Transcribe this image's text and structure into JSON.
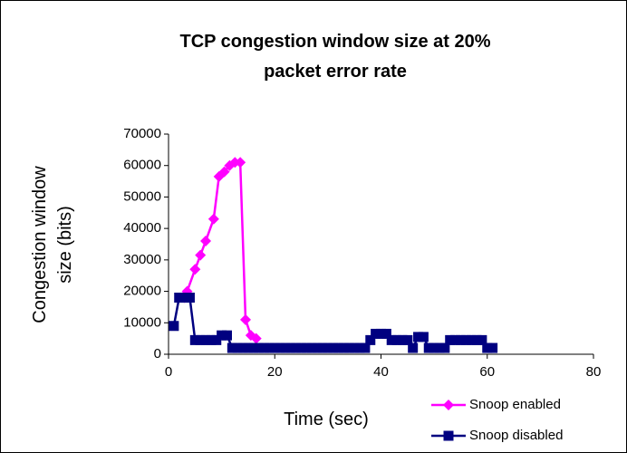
{
  "chart_data": {
    "type": "line",
    "title": "TCP congestion window size at 20% packet error rate",
    "x_label": "Time (sec)",
    "y_label": "Congestion window size (bits)",
    "xlim": [
      0,
      80
    ],
    "xticks": [
      0,
      20,
      40,
      60,
      80
    ],
    "ylim": [
      0,
      70000
    ],
    "yticks": [
      0,
      10000,
      20000,
      30000,
      40000,
      50000,
      60000,
      70000
    ],
    "grid": false,
    "legend": "bottom-right",
    "series": [
      {
        "name": "Snoop enabled",
        "color": "#ff00ff",
        "marker": "diamond",
        "x": [
          3,
          3.5,
          5,
          6,
          7,
          8.5,
          9.5,
          10.5,
          11.5,
          12.5,
          13.5,
          14.5,
          15.5,
          16.5
        ],
        "values": [
          18000,
          20000,
          27000,
          31500,
          36000,
          43000,
          56500,
          58000,
          60000,
          61000,
          61000,
          11000,
          6000,
          5000
        ]
      },
      {
        "name": "Snoop disabled",
        "color": "#000080",
        "marker": "square",
        "x": [
          1,
          2,
          3,
          4,
          5,
          6,
          7,
          8,
          9,
          10,
          11,
          12,
          13,
          14,
          15,
          16,
          17,
          18,
          19,
          20,
          21,
          22,
          23,
          24,
          25,
          26,
          27,
          28,
          29,
          30,
          31,
          32,
          33,
          34,
          35,
          36,
          37,
          38,
          39,
          40,
          41,
          42,
          43,
          44,
          45,
          46,
          47,
          48,
          49,
          50,
          51,
          52,
          53,
          54,
          55,
          56,
          57,
          58,
          59,
          60,
          61
        ],
        "values": [
          9000,
          18000,
          18000,
          18000,
          4500,
          4500,
          4500,
          4500,
          4500,
          6000,
          6000,
          2000,
          2000,
          2000,
          2000,
          2000,
          2000,
          2000,
          2000,
          2000,
          2000,
          2000,
          2000,
          2000,
          2000,
          2000,
          2000,
          2000,
          2000,
          2000,
          2000,
          2000,
          2000,
          2000,
          2000,
          2000,
          2000,
          4500,
          6500,
          6500,
          6500,
          4500,
          4500,
          4500,
          4500,
          2000,
          5500,
          5500,
          2000,
          2000,
          2000,
          2000,
          4500,
          4500,
          4500,
          4500,
          4500,
          4500,
          4500,
          2000,
          2000
        ]
      }
    ]
  }
}
